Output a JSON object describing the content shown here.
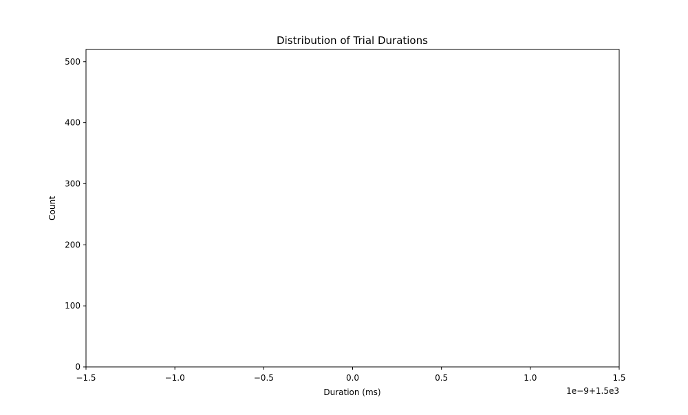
{
  "chart_data": {
    "type": "bar",
    "title": "Distribution of Trial Durations",
    "xlabel": "Duration (ms)",
    "ylabel": "Count",
    "x_offset_label": "1e−9+1.5e3",
    "xlim": [
      -1.5,
      1.5
    ],
    "ylim": [
      0,
      520
    ],
    "xticks": [
      -1.5,
      -1.0,
      -0.5,
      0.0,
      0.5,
      1.0,
      1.5
    ],
    "xtick_labels": [
      "−1.5",
      "−1.0",
      "−0.5",
      "0.0",
      "0.5",
      "1.0",
      "1.5"
    ],
    "yticks": [
      0,
      100,
      200,
      300,
      400,
      500
    ],
    "ytick_labels": [
      "0",
      "100",
      "200",
      "300",
      "400",
      "500"
    ],
    "bins": [],
    "counts": [],
    "grid": false,
    "legend": "none"
  }
}
